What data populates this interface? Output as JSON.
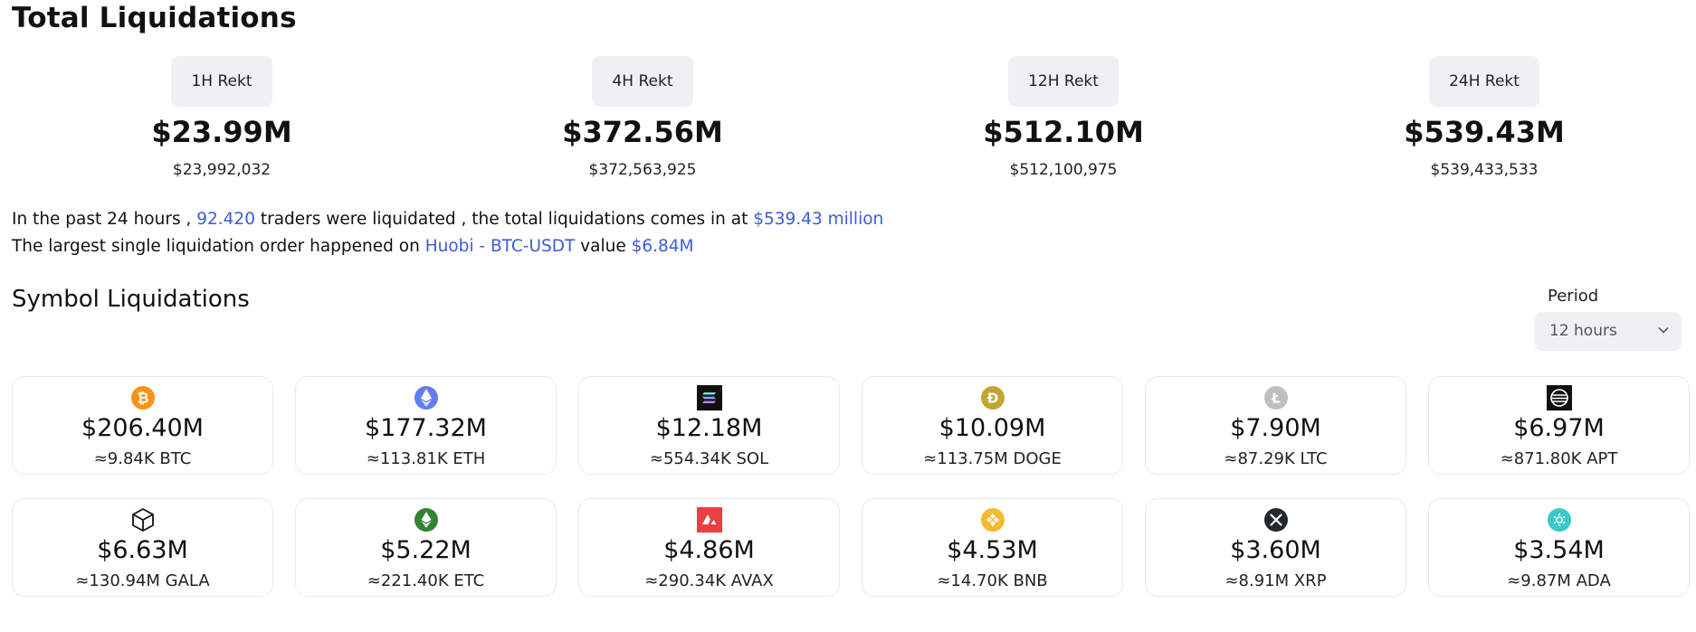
{
  "page_title": "Total Liquidations",
  "rekt": [
    {
      "label": "1H Rekt",
      "value": "$23.99M",
      "exact": "$23,992,032"
    },
    {
      "label": "4H Rekt",
      "value": "$372.56M",
      "exact": "$372,563,925"
    },
    {
      "label": "12H Rekt",
      "value": "$512.10M",
      "exact": "$512,100,975"
    },
    {
      "label": "24H Rekt",
      "value": "$539.43M",
      "exact": "$539,433,533"
    }
  ],
  "summary": {
    "line1_pre": "In the past 24 hours , ",
    "traders": "92.420",
    "line1_mid": " traders were liquidated , the total liquidations comes in at ",
    "total": "$539.43 million",
    "line2_pre": "The largest single liquidation order happened on ",
    "largest_market": "Huobi - BTC-USDT",
    "line2_mid": " value ",
    "largest_value": "$6.84M"
  },
  "symbol_section": {
    "title": "Symbol Liquidations",
    "period_label": "Period",
    "period_value": "12 hours"
  },
  "colors": {
    "accent": "#3b5bdb",
    "chip_bg": "#eef0f4"
  },
  "symbols": [
    {
      "icon": "bitcoin-icon",
      "value": "$206.40M",
      "amount": "≈9.84K BTC"
    },
    {
      "icon": "ethereum-icon",
      "value": "$177.32M",
      "amount": "≈113.81K ETH"
    },
    {
      "icon": "solana-icon",
      "value": "$12.18M",
      "amount": "≈554.34K SOL"
    },
    {
      "icon": "dogecoin-icon",
      "value": "$10.09M",
      "amount": "≈113.75M DOGE"
    },
    {
      "icon": "litecoin-icon",
      "value": "$7.90M",
      "amount": "≈87.29K LTC"
    },
    {
      "icon": "aptos-icon",
      "value": "$6.97M",
      "amount": "≈871.80K APT"
    },
    {
      "icon": "gala-icon",
      "value": "$6.63M",
      "amount": "≈130.94M GALA"
    },
    {
      "icon": "ethereum-classic-icon",
      "value": "$5.22M",
      "amount": "≈221.40K ETC"
    },
    {
      "icon": "avalanche-icon",
      "value": "$4.86M",
      "amount": "≈290.34K AVAX"
    },
    {
      "icon": "bnb-icon",
      "value": "$4.53M",
      "amount": "≈14.70K BNB"
    },
    {
      "icon": "xrp-icon",
      "value": "$3.60M",
      "amount": "≈8.91M XRP"
    },
    {
      "icon": "cardano-icon",
      "value": "$3.54M",
      "amount": "≈9.87M ADA"
    }
  ]
}
